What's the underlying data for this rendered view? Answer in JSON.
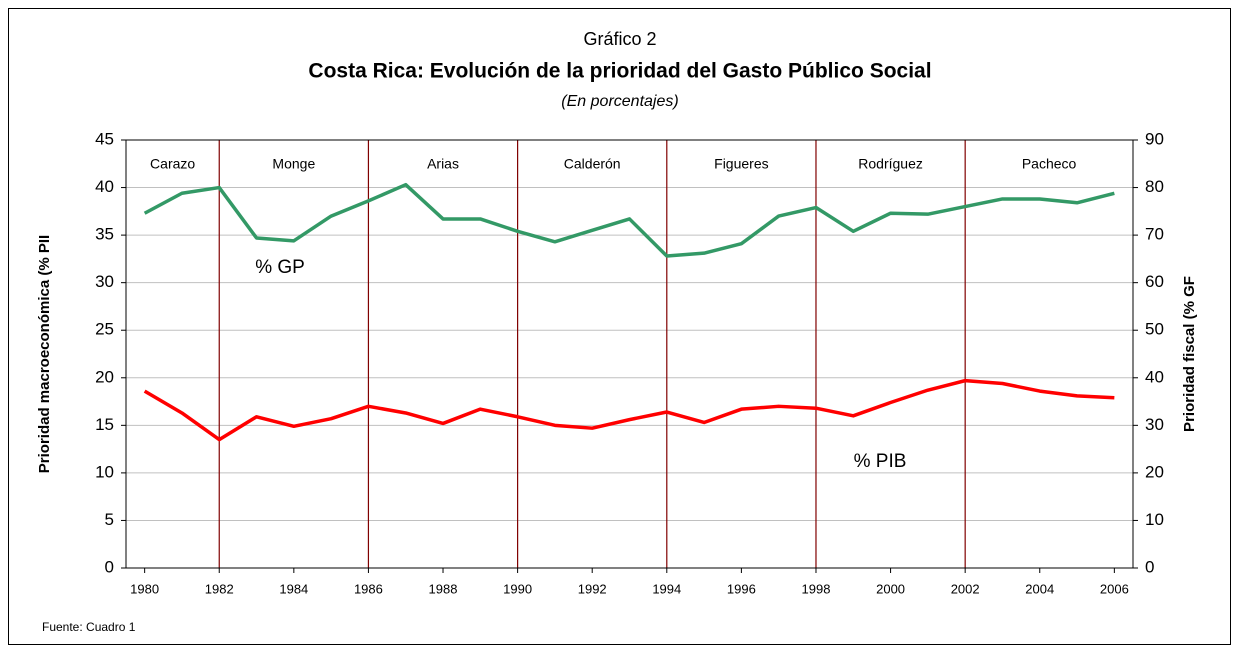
{
  "chart_data": {
    "type": "line",
    "title_top": "Gráfico 2",
    "title": "Costa Rica: Evolución de la prioridad del Gasto Público Social",
    "subtitle": "(En porcentajes)",
    "y_label": "Prioridad macroeconómica (% PII",
    "y2_label": "Prioridad fiscal (% GF",
    "source": "Fuente: Cuadro 1",
    "x": [
      1980,
      1981,
      1982,
      1983,
      1984,
      1985,
      1986,
      1987,
      1988,
      1989,
      1990,
      1991,
      1992,
      1993,
      1994,
      1995,
      1996,
      1997,
      1998,
      1999,
      2000,
      2001,
      2002,
      2003,
      2004,
      2005,
      2006
    ],
    "xlim": [
      1979.5,
      2006.5
    ],
    "xticks": [
      1980,
      1982,
      1984,
      1986,
      1988,
      1990,
      1992,
      1994,
      1996,
      1998,
      2000,
      2002,
      2004,
      2006
    ],
    "ylim": [
      0,
      45
    ],
    "yticks": [
      0,
      5,
      10,
      15,
      20,
      25,
      30,
      35,
      40,
      45
    ],
    "y2lim": [
      0,
      90
    ],
    "y2ticks": [
      0,
      10,
      20,
      30,
      40,
      50,
      60,
      70,
      80,
      90
    ],
    "grid": true,
    "series": [
      {
        "name": "% PIB",
        "color": "#ff0000",
        "axis": "y",
        "values": [
          18.6,
          16.3,
          13.5,
          15.9,
          14.9,
          15.7,
          17.0,
          16.3,
          15.2,
          16.7,
          15.9,
          15.0,
          14.7,
          15.6,
          16.4,
          15.3,
          16.7,
          17.0,
          16.8,
          16.0,
          17.4,
          18.7,
          19.7,
          19.4,
          18.6,
          18.1,
          17.9
        ]
      },
      {
        "name": "% GP",
        "color": "#339966",
        "axis": "y2",
        "values": [
          74.6,
          78.8,
          80.0,
          69.4,
          68.8,
          74.0,
          77.2,
          80.6,
          73.4,
          73.4,
          70.8,
          68.6,
          71.0,
          73.4,
          65.6,
          66.2,
          68.2,
          74.0,
          75.8,
          70.8,
          74.6,
          74.4,
          76.0,
          77.6,
          77.6,
          76.8,
          78.8
        ]
      }
    ],
    "period_dividers": [
      1982,
      1986,
      1990,
      1994,
      1998,
      2002
    ],
    "periods": [
      "Carazo",
      "Monge",
      "Arias",
      "Calderón",
      "Figueres",
      "Rodríguez",
      "Pacheco"
    ],
    "divider_color": "#800000"
  }
}
